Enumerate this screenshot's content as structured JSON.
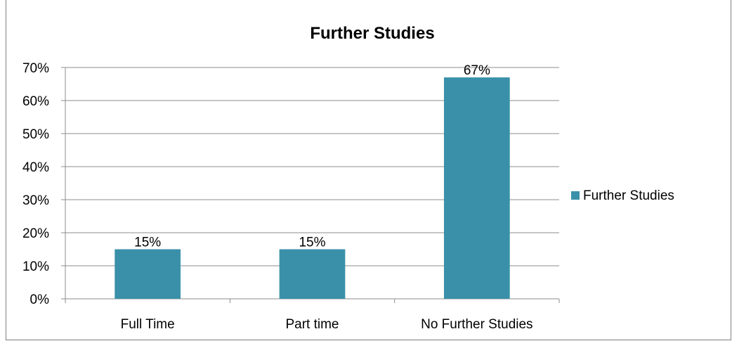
{
  "chart_data": {
    "type": "bar",
    "title": "Further Studies",
    "categories": [
      "Full Time",
      "Part time",
      "No Further Studies"
    ],
    "series": [
      {
        "name": "Further Studies",
        "values": [
          15,
          15,
          67
        ],
        "data_labels": [
          "15%",
          "15%",
          "67%"
        ]
      }
    ],
    "ylim": [
      0,
      70
    ],
    "yticks": [
      "0%",
      "10%",
      "20%",
      "30%",
      "40%",
      "50%",
      "60%",
      "70%"
    ],
    "grid": true,
    "legend_position": "right",
    "bar_color": "#3A90A9"
  }
}
